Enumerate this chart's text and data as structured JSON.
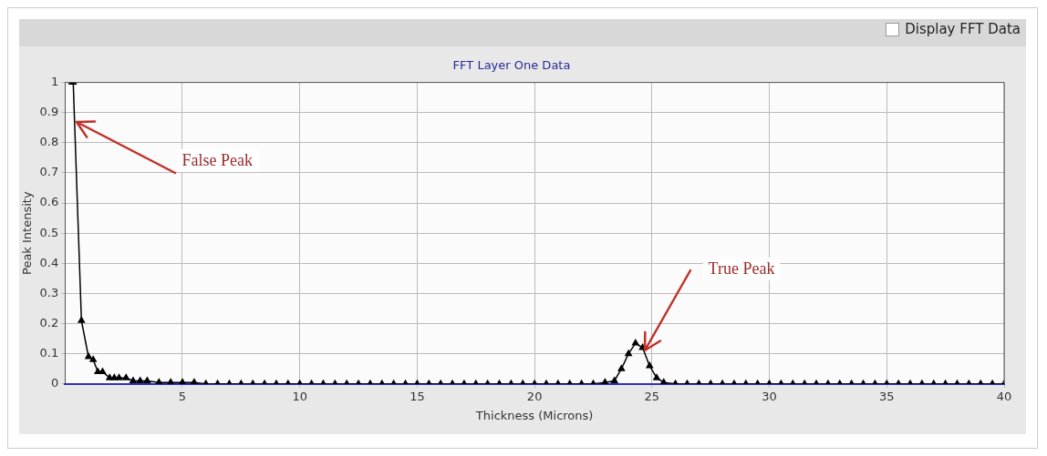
{
  "chart_data": {
    "type": "line",
    "title": "FFT Layer One Data",
    "xlabel": "Thickness (Microns)",
    "ylabel": "Peak Intensity",
    "x": [
      0.3,
      0.35,
      0.7,
      1.0,
      1.2,
      1.4,
      1.6,
      1.9,
      2.1,
      2.3,
      2.6,
      2.9,
      3.2,
      3.5,
      4.0,
      4.5,
      5.0,
      5.5,
      6.0,
      6.5,
      7.0,
      7.5,
      8.0,
      8.5,
      9.0,
      9.5,
      10.0,
      10.5,
      11.0,
      11.5,
      12.0,
      12.5,
      13.0,
      13.5,
      14.0,
      14.5,
      15.0,
      15.5,
      16.0,
      16.5,
      17.0,
      17.5,
      18.0,
      18.5,
      19.0,
      19.5,
      20.0,
      20.5,
      21.0,
      21.5,
      22.0,
      22.5,
      23.0,
      23.4,
      23.7,
      24.0,
      24.3,
      24.6,
      24.9,
      25.2,
      25.5,
      26.0,
      26.5,
      27.0,
      27.5,
      28.0,
      28.5,
      29.0,
      29.5,
      30.0,
      30.5,
      31.0,
      31.5,
      32.0,
      32.5,
      33.0,
      33.5,
      34.0,
      34.5,
      35.0,
      35.5,
      36.0,
      36.5,
      37.0,
      37.5,
      38.0,
      38.5,
      39.0,
      39.5,
      40.0
    ],
    "series": [
      {
        "color": "#000000",
        "values": [
          1.0,
          1.0,
          0.21,
          0.09,
          0.08,
          0.04,
          0.04,
          0.02,
          0.02,
          0.02,
          0.02,
          0.01,
          0.01,
          0.01,
          0.005,
          0.005,
          0.005,
          0.005,
          0,
          0,
          0,
          0,
          0,
          0,
          0,
          0,
          0,
          0,
          0,
          0,
          0,
          0,
          0,
          0,
          0,
          0,
          0,
          0,
          0,
          0,
          0,
          0,
          0,
          0,
          0,
          0,
          0,
          0,
          0,
          0,
          0,
          0,
          0.005,
          0.01,
          0.05,
          0.1,
          0.135,
          0.12,
          0.06,
          0.02,
          0.005,
          0,
          0,
          0,
          0,
          0,
          0,
          0,
          0,
          0,
          0,
          0,
          0,
          0,
          0,
          0,
          0,
          0,
          0,
          0,
          0,
          0,
          0,
          0,
          0,
          0,
          0,
          0,
          0,
          0
        ]
      }
    ],
    "xlim": [
      0,
      40
    ],
    "xticks": [
      5,
      10,
      15,
      20,
      25,
      30,
      35,
      40
    ],
    "ylim": [
      0,
      1
    ],
    "yticks": [
      0,
      0.1,
      0.2,
      0.3,
      0.4,
      0.5,
      0.6,
      0.7,
      0.8,
      0.9,
      1
    ],
    "grid": true,
    "marker": "triangle",
    "line_style": "solid",
    "legend": false,
    "annotations": [
      "Display FFT Data",
      {
        "text": "False Peak",
        "x": 0.4,
        "y": 0.87
      },
      {
        "text": "True Peak",
        "x": 24.6,
        "y": 0.11
      }
    ]
  }
}
